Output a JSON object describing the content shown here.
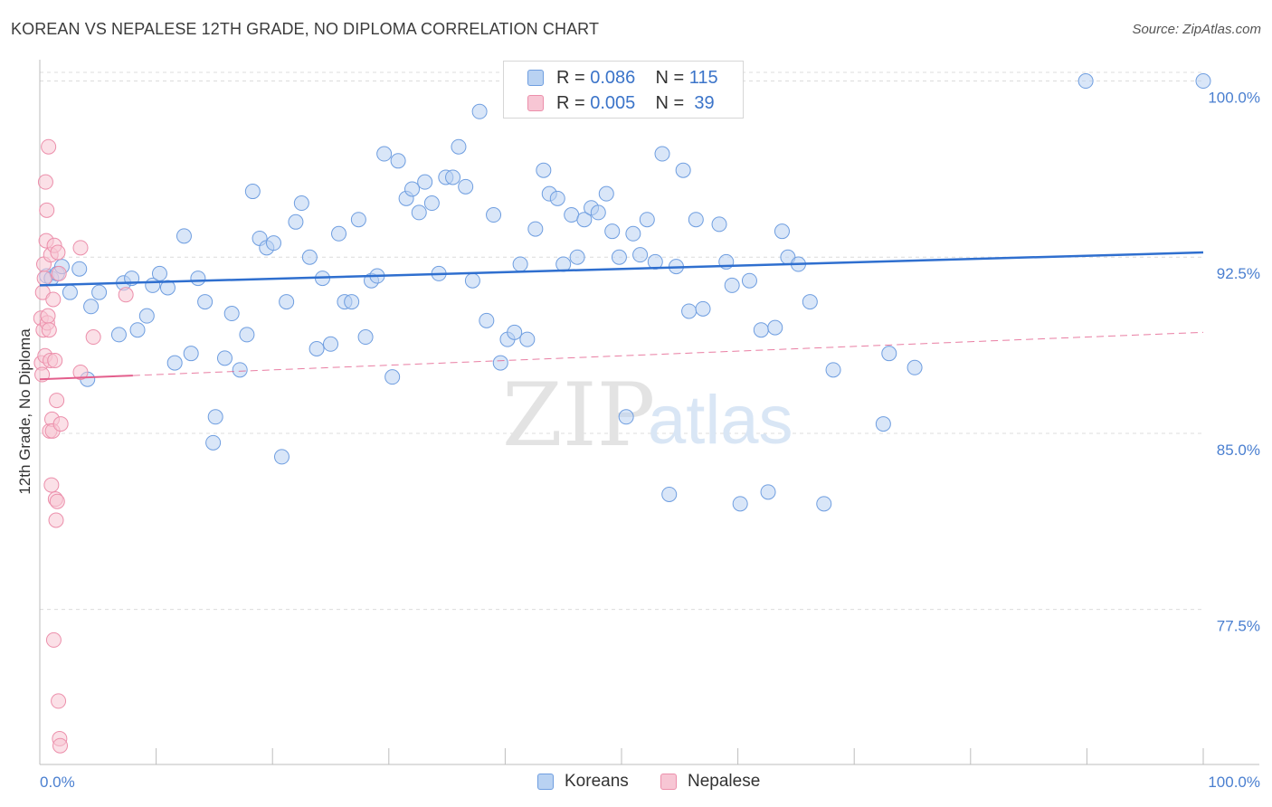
{
  "title": "KOREAN VS NEPALESE 12TH GRADE, NO DIPLOMA CORRELATION CHART",
  "source": "Source: ZipAtlas.com",
  "watermark": {
    "zip": "ZIP",
    "atlas": "atlas"
  },
  "legend": {
    "rows": [
      {
        "r_label": "R =",
        "r_value": "0.086",
        "n_label": "N =",
        "n_value": "115"
      },
      {
        "r_label": "R =",
        "r_value": "0.005",
        "n_label": "N =",
        "n_value": "39"
      }
    ]
  },
  "bottom_legend": {
    "koreans": "Koreans",
    "nepalese": "Nepalese"
  },
  "colors": {
    "korean_fill": "#b9d2f2",
    "korean_stroke": "#6f9ee0",
    "korean_line": "#2f6fcf",
    "nepalese_fill": "#f7c6d4",
    "nepalese_stroke": "#ec8fab",
    "nepalese_line": "#e35e8c",
    "grid": "#dcdcdc",
    "tick_label": "#4a7fd0"
  },
  "chart_data": {
    "type": "scatter",
    "title": "KOREAN VS NEPALESE 12TH GRADE, NO DIPLOMA CORRELATION CHART",
    "xlabel": "",
    "ylabel": "12th Grade, No Diploma",
    "xlim": [
      0,
      100
    ],
    "ylim": [
      70.9,
      101.6
    ],
    "x_tick_labels": [
      "0.0%",
      "100.0%"
    ],
    "y_ticks": [
      77.5,
      85.0,
      92.5,
      100.0
    ],
    "y_tick_labels": [
      "77.5%",
      "85.0%",
      "92.5%",
      "100.0%"
    ],
    "grid": true,
    "legend_position": "top-center",
    "series": [
      {
        "name": "Koreans",
        "r": 0.086,
        "n": 115,
        "trend": {
          "x": [
            0,
            100
          ],
          "y": [
            91.3,
            92.7
          ]
        },
        "points": [
          [
            0.6,
            91.7
          ],
          [
            1.0,
            91.6
          ],
          [
            1.5,
            91.8
          ],
          [
            1.9,
            92.1
          ],
          [
            2.6,
            91.0
          ],
          [
            3.4,
            92.0
          ],
          [
            4.1,
            87.3
          ],
          [
            4.4,
            90.4
          ],
          [
            5.1,
            91.0
          ],
          [
            6.8,
            89.2
          ],
          [
            7.2,
            91.4
          ],
          [
            7.9,
            91.6
          ],
          [
            8.4,
            89.4
          ],
          [
            9.2,
            90.0
          ],
          [
            9.7,
            91.3
          ],
          [
            10.3,
            91.8
          ],
          [
            11.0,
            91.2
          ],
          [
            11.6,
            88.0
          ],
          [
            12.4,
            93.4
          ],
          [
            13.0,
            88.4
          ],
          [
            13.6,
            91.6
          ],
          [
            14.2,
            90.6
          ],
          [
            14.9,
            84.6
          ],
          [
            15.1,
            85.7
          ],
          [
            15.9,
            88.2
          ],
          [
            16.5,
            90.1
          ],
          [
            17.2,
            87.7
          ],
          [
            17.8,
            89.2
          ],
          [
            18.3,
            95.3
          ],
          [
            18.9,
            93.3
          ],
          [
            19.5,
            92.9
          ],
          [
            20.1,
            93.1
          ],
          [
            20.8,
            84.0
          ],
          [
            21.2,
            90.6
          ],
          [
            22.0,
            94.0
          ],
          [
            22.5,
            94.8
          ],
          [
            23.2,
            92.5
          ],
          [
            23.8,
            88.6
          ],
          [
            24.3,
            91.6
          ],
          [
            25.0,
            88.8
          ],
          [
            25.7,
            93.5
          ],
          [
            26.2,
            90.6
          ],
          [
            26.8,
            90.6
          ],
          [
            27.4,
            94.1
          ],
          [
            28.0,
            89.1
          ],
          [
            28.5,
            91.5
          ],
          [
            29.0,
            91.7
          ],
          [
            29.6,
            96.9
          ],
          [
            30.3,
            87.4
          ],
          [
            30.8,
            96.6
          ],
          [
            31.5,
            95.0
          ],
          [
            32.0,
            95.4
          ],
          [
            32.6,
            94.4
          ],
          [
            33.1,
            95.7
          ],
          [
            33.7,
            94.8
          ],
          [
            34.3,
            91.8
          ],
          [
            34.9,
            95.9
          ],
          [
            35.5,
            95.9
          ],
          [
            36.0,
            97.2
          ],
          [
            36.6,
            95.5
          ],
          [
            37.2,
            91.5
          ],
          [
            37.8,
            98.7
          ],
          [
            38.4,
            89.8
          ],
          [
            39.0,
            94.3
          ],
          [
            39.6,
            88.0
          ],
          [
            40.2,
            89.0
          ],
          [
            40.8,
            89.3
          ],
          [
            41.3,
            92.2
          ],
          [
            41.9,
            89.0
          ],
          [
            42.6,
            93.7
          ],
          [
            43.3,
            96.2
          ],
          [
            43.8,
            95.2
          ],
          [
            44.5,
            95.0
          ],
          [
            45.0,
            92.2
          ],
          [
            45.7,
            94.3
          ],
          [
            46.2,
            92.5
          ],
          [
            46.8,
            94.1
          ],
          [
            47.4,
            94.6
          ],
          [
            48.0,
            94.4
          ],
          [
            48.7,
            95.2
          ],
          [
            49.2,
            93.6
          ],
          [
            49.8,
            92.5
          ],
          [
            50.4,
            85.7
          ],
          [
            51.0,
            93.5
          ],
          [
            51.6,
            92.6
          ],
          [
            52.2,
            94.1
          ],
          [
            52.9,
            92.3
          ],
          [
            53.5,
            96.9
          ],
          [
            54.1,
            82.4
          ],
          [
            54.7,
            92.1
          ],
          [
            55.3,
            96.2
          ],
          [
            55.8,
            90.2
          ],
          [
            56.4,
            94.1
          ],
          [
            57.0,
            90.3
          ],
          [
            58.4,
            93.9
          ],
          [
            59.0,
            92.3
          ],
          [
            59.5,
            91.3
          ],
          [
            60.2,
            82.0
          ],
          [
            61.0,
            91.5
          ],
          [
            62.0,
            89.4
          ],
          [
            62.6,
            82.5
          ],
          [
            63.2,
            89.5
          ],
          [
            63.8,
            93.6
          ],
          [
            64.3,
            92.5
          ],
          [
            65.2,
            92.2
          ],
          [
            66.2,
            90.6
          ],
          [
            67.4,
            82.0
          ],
          [
            68.2,
            87.7
          ],
          [
            72.5,
            85.4
          ],
          [
            73.0,
            88.4
          ],
          [
            75.2,
            87.8
          ],
          [
            89.9,
            100.0
          ],
          [
            100.0,
            100.0
          ]
        ]
      },
      {
        "name": "Nepalese",
        "r": 0.005,
        "n": 39,
        "trend": {
          "x": [
            0,
            100
          ],
          "y": [
            87.3,
            89.3
          ]
        },
        "points": [
          [
            0.1,
            89.9
          ],
          [
            0.15,
            88.0
          ],
          [
            0.2,
            87.5
          ],
          [
            0.25,
            91.0
          ],
          [
            0.3,
            89.4
          ],
          [
            0.35,
            92.2
          ],
          [
            0.4,
            91.6
          ],
          [
            0.45,
            88.3
          ],
          [
            0.5,
            95.7
          ],
          [
            0.55,
            93.2
          ],
          [
            0.6,
            94.5
          ],
          [
            0.65,
            89.7
          ],
          [
            0.7,
            90.0
          ],
          [
            0.75,
            97.2
          ],
          [
            0.8,
            89.4
          ],
          [
            0.85,
            85.1
          ],
          [
            0.9,
            88.1
          ],
          [
            0.95,
            92.6
          ],
          [
            1.0,
            82.8
          ],
          [
            1.05,
            85.6
          ],
          [
            1.1,
            85.1
          ],
          [
            1.15,
            90.7
          ],
          [
            1.2,
            76.2
          ],
          [
            1.25,
            93.0
          ],
          [
            1.3,
            88.1
          ],
          [
            1.35,
            82.2
          ],
          [
            1.4,
            81.3
          ],
          [
            1.45,
            86.4
          ],
          [
            1.5,
            82.1
          ],
          [
            1.55,
            92.7
          ],
          [
            1.6,
            73.6
          ],
          [
            1.65,
            91.8
          ],
          [
            1.7,
            72.0
          ],
          [
            1.75,
            71.7
          ],
          [
            1.8,
            85.4
          ],
          [
            3.5,
            87.6
          ],
          [
            3.5,
            92.9
          ],
          [
            4.6,
            89.1
          ],
          [
            7.4,
            90.9
          ]
        ]
      }
    ]
  }
}
